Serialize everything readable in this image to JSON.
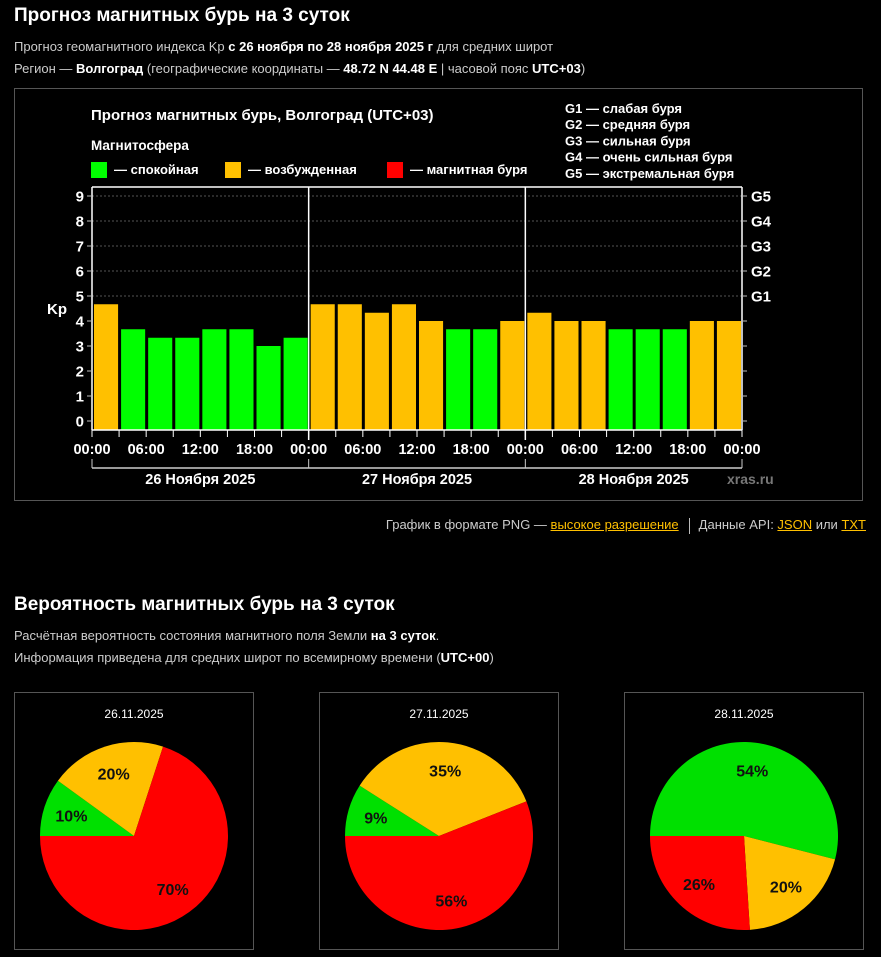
{
  "header": {
    "title": "Прогноз магнитных бурь на 3 суток",
    "line1": {
      "pre": "Прогноз геомагнитного индекса Kp ",
      "bold": "с 26 ноября по 28 ноября 2025 г",
      "post": " для средних широт"
    },
    "line2": {
      "pre": "Регион — ",
      "city": "Волгоград",
      "mid": " (географические координаты — ",
      "coords": "48.72 N 44.48 E",
      "mid2": " | часовой пояс ",
      "tz": "UTC+03",
      "post": ")"
    }
  },
  "colors": {
    "quiet": "#00ff00",
    "excited": "#ffc000",
    "storm": "#ff0000",
    "pie_quiet": "#00e000"
  },
  "links": {
    "png_text": "График в формате PNG — ",
    "png_link": "высокое разрешение",
    "api_text": "Данные API: ",
    "json_link": "JSON",
    "or": " или ",
    "txt_link": "TXT"
  },
  "prob": {
    "title": "Вероятность магнитных бурь на 3 суток",
    "line1": {
      "pre": "Расчётная вероятность состояния магнитного поля Земли ",
      "bold": "на 3 суток",
      "post": "."
    },
    "line2": {
      "pre": "Информация приведена для средних широт по всемирному времени (",
      "bold": "UTC+00",
      "post": ")"
    }
  },
  "chart_data": [
    {
      "type": "bar",
      "title": "Прогноз магнитных бурь, Волгоград (UTC+03)",
      "legend_title": "Магнитосфера",
      "legend": [
        {
          "label": "— спокойная",
          "color": "#00ff00"
        },
        {
          "label": "— возбужденная",
          "color": "#ffc000"
        },
        {
          "label": "— магнитная буря",
          "color": "#ff0000"
        }
      ],
      "g_legend": [
        "G1 — слабая буря",
        "G2 — средняя буря",
        "G3 — сильная буря",
        "G4 — очень сильная буря",
        "G5 — экстремальная буря"
      ],
      "ylabel": "Kp",
      "ylim": [
        0,
        9
      ],
      "yticks": [
        "0",
        "1",
        "2",
        "3",
        "4",
        "5",
        "6",
        "7",
        "8",
        "9"
      ],
      "g_ticks": [
        {
          "label": "G1",
          "value": 5
        },
        {
          "label": "G2",
          "value": 6
        },
        {
          "label": "G3",
          "value": 7
        },
        {
          "label": "G4",
          "value": 8
        },
        {
          "label": "G5",
          "value": 9
        }
      ],
      "xticks": [
        "00:00",
        "06:00",
        "12:00",
        "18:00",
        "00:00",
        "06:00",
        "12:00",
        "18:00",
        "00:00",
        "06:00",
        "12:00",
        "18:00",
        "00:00"
      ],
      "days": [
        "26 Ноября 2025",
        "27 Ноября 2025",
        "28 Ноября 2025"
      ],
      "watermark": "xras.ru",
      "grid": true,
      "values": [
        4.67,
        3.67,
        3.33,
        3.33,
        3.67,
        3.67,
        3.0,
        3.33,
        4.67,
        4.67,
        4.33,
        4.67,
        4.0,
        3.67,
        3.67,
        4.0,
        4.33,
        4.0,
        4.0,
        3.67,
        3.67,
        3.67,
        4.0,
        4.0
      ],
      "states": [
        "excited",
        "quiet",
        "quiet",
        "quiet",
        "quiet",
        "quiet",
        "quiet",
        "quiet",
        "excited",
        "excited",
        "excited",
        "excited",
        "excited",
        "quiet",
        "quiet",
        "excited",
        "excited",
        "excited",
        "excited",
        "quiet",
        "quiet",
        "quiet",
        "excited",
        "excited"
      ]
    },
    {
      "type": "pie",
      "title": "26.11.2025",
      "slices": [
        {
          "name": "quiet",
          "value": 10,
          "label": "10%"
        },
        {
          "name": "excited",
          "value": 20,
          "label": "20%"
        },
        {
          "name": "storm",
          "value": 70,
          "label": "70%"
        }
      ]
    },
    {
      "type": "pie",
      "title": "27.11.2025",
      "slices": [
        {
          "name": "quiet",
          "value": 9,
          "label": "9%"
        },
        {
          "name": "excited",
          "value": 35,
          "label": "35%"
        },
        {
          "name": "storm",
          "value": 56,
          "label": "56%"
        }
      ]
    },
    {
      "type": "pie",
      "title": "28.11.2025",
      "slices": [
        {
          "name": "quiet",
          "value": 54,
          "label": "54%"
        },
        {
          "name": "excited",
          "value": 20,
          "label": "20%"
        },
        {
          "name": "storm",
          "value": 26,
          "label": "26%"
        }
      ]
    }
  ]
}
